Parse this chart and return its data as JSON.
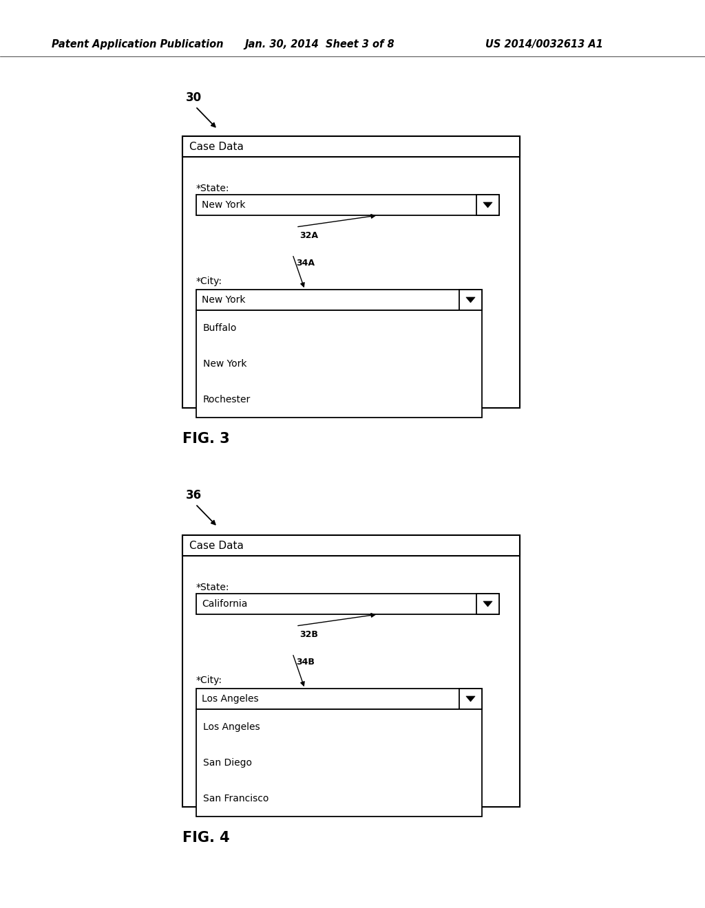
{
  "background_color": "#ffffff",
  "header_text": "Patent Application Publication",
  "header_date": "Jan. 30, 2014  Sheet 3 of 8",
  "header_patent": "US 2014/0032613 A1",
  "header_fontsize": 10.5,
  "fig3_label": "30",
  "fig3_title": "Case Data",
  "fig3_state_label": "*State:",
  "fig3_state_value": "New York",
  "fig3_ref32": "32A",
  "fig3_ref34": "34A",
  "fig3_city_label": "*City:",
  "fig3_city_value": "New York",
  "fig3_city_items": [
    "Buffalo",
    "New York",
    "Rochester"
  ],
  "fig3_caption": "FIG. 3",
  "fig4_label": "36",
  "fig4_title": "Case Data",
  "fig4_state_label": "*State:",
  "fig4_state_value": "California",
  "fig4_ref32": "32B",
  "fig4_ref34": "34B",
  "fig4_city_label": "*City:",
  "fig4_city_value": "Los Angeles",
  "fig4_city_items": [
    "Los Angeles",
    "San Diego",
    "San Francisco"
  ],
  "fig4_caption": "FIG. 4",
  "text_color": "#000000",
  "line_color": "#000000"
}
